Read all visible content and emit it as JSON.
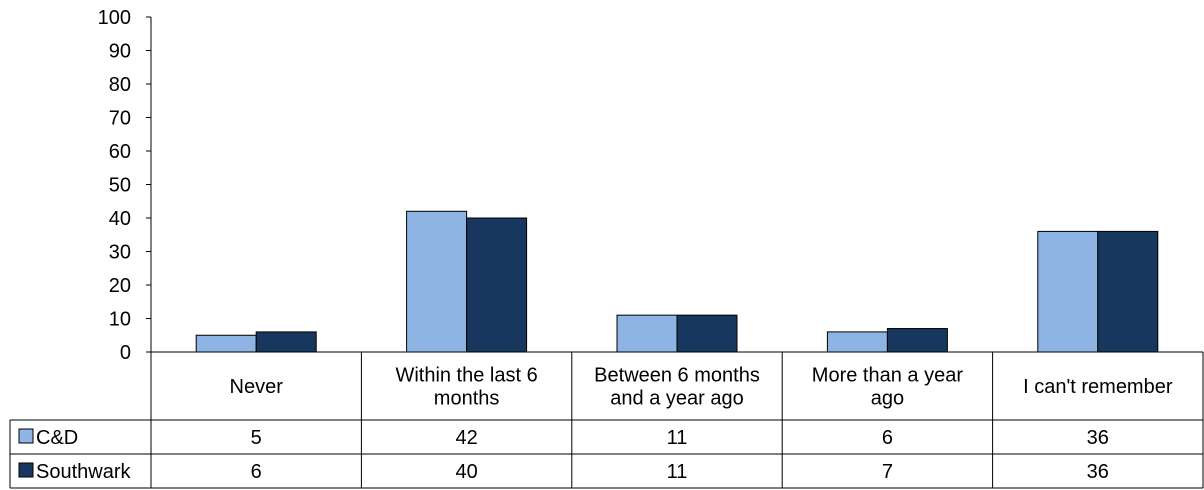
{
  "chart_data": {
    "type": "bar",
    "categories": [
      [
        "Never"
      ],
      [
        "Within the last 6",
        "months"
      ],
      [
        "Between 6 months",
        "and a year ago"
      ],
      [
        "More than a year",
        "ago"
      ],
      [
        "I can't remember"
      ]
    ],
    "series": [
      {
        "name": "C&D",
        "values": [
          5,
          42,
          11,
          6,
          36
        ],
        "color": "#8eb4e3"
      },
      {
        "name": "Southwark",
        "values": [
          6,
          40,
          11,
          7,
          36
        ],
        "color": "#17375e"
      }
    ],
    "ylim": [
      0,
      100
    ],
    "yticks": [
      0,
      10,
      20,
      30,
      40,
      50,
      60,
      70,
      80,
      90,
      100
    ],
    "grid": false,
    "legend": "data-table",
    "title": "",
    "xlabel": "",
    "ylabel": ""
  }
}
